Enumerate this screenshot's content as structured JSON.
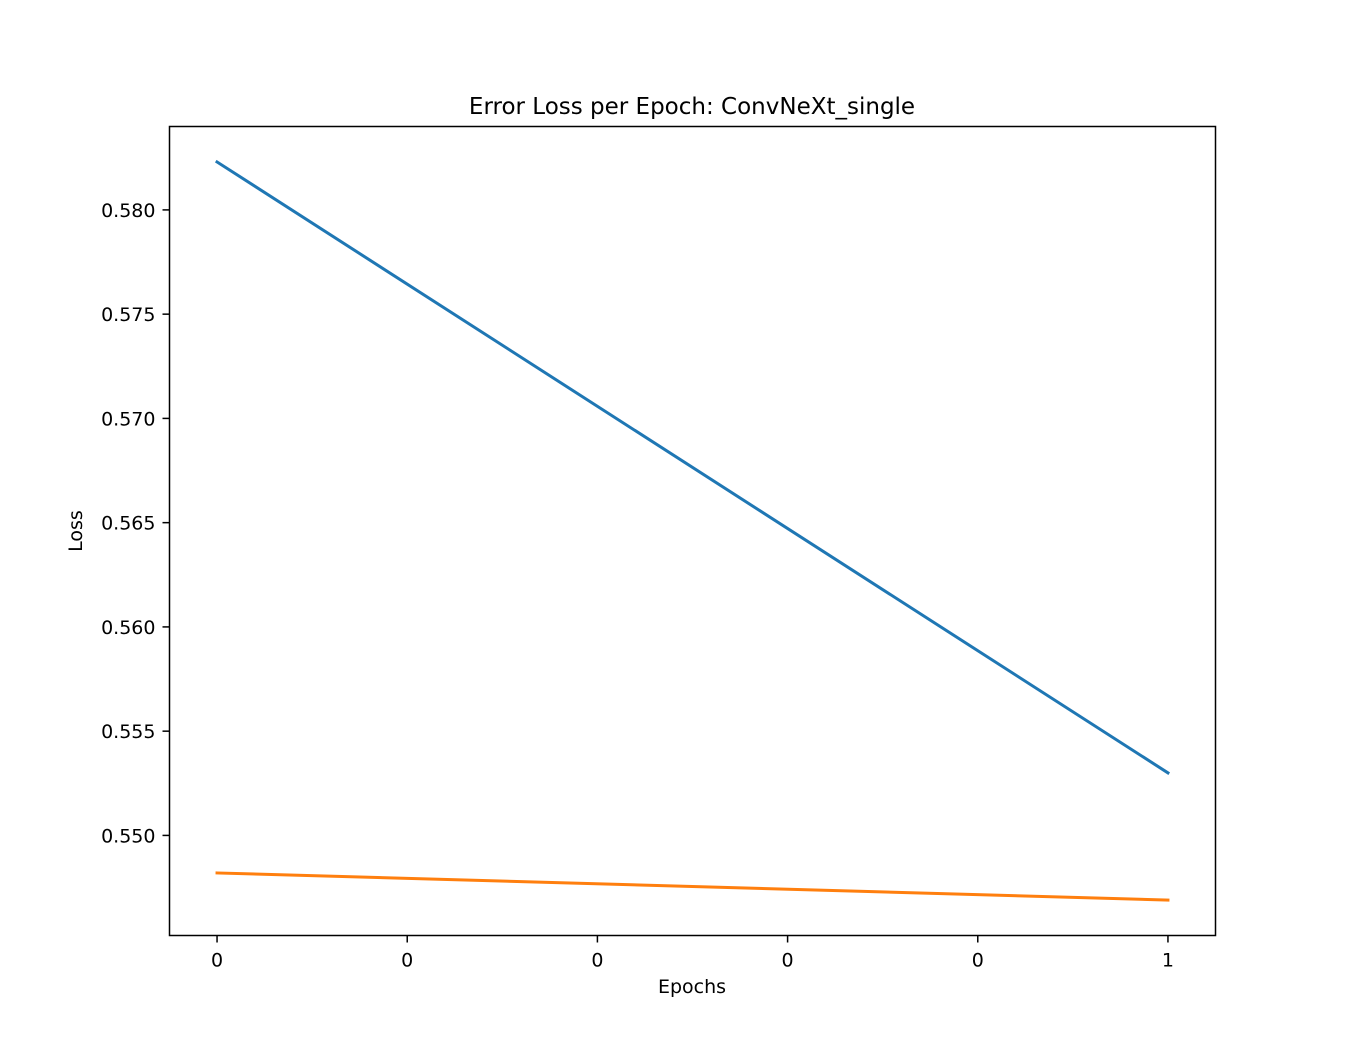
{
  "chart_data": {
    "type": "line",
    "title": "Error Loss per Epoch: ConvNeXt_single",
    "xlabel": "Epochs",
    "ylabel": "Loss",
    "x": [
      0,
      1
    ],
    "xlim": [
      -0.05,
      1.05
    ],
    "x_ticks": [
      {
        "value": 0.0,
        "label": "0"
      },
      {
        "value": 0.2,
        "label": "0"
      },
      {
        "value": 0.4,
        "label": "0"
      },
      {
        "value": 0.6,
        "label": "0"
      },
      {
        "value": 0.8,
        "label": "0"
      },
      {
        "value": 1.0,
        "label": "1"
      }
    ],
    "ylim": [
      0.5452,
      0.584
    ],
    "y_ticks": [
      {
        "value": 0.55,
        "label": "0.550"
      },
      {
        "value": 0.555,
        "label": "0.555"
      },
      {
        "value": 0.56,
        "label": "0.560"
      },
      {
        "value": 0.565,
        "label": "0.565"
      },
      {
        "value": 0.57,
        "label": "0.570"
      },
      {
        "value": 0.575,
        "label": "0.575"
      },
      {
        "value": 0.58,
        "label": "0.580"
      }
    ],
    "grid": false,
    "series": [
      {
        "color": "#1f77b4",
        "values": [
          0.5823,
          0.553
        ]
      },
      {
        "color": "#ff7f0e",
        "values": [
          0.5482,
          0.5469
        ]
      }
    ]
  }
}
